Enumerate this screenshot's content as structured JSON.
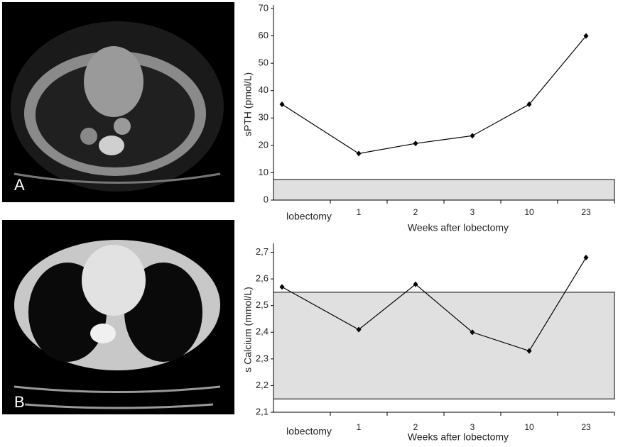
{
  "panels": [
    {
      "label": "A"
    },
    {
      "label": "B"
    }
  ],
  "chart_data": [
    {
      "type": "line",
      "ylabel": "sPTH (pmol/L)",
      "xlabel": "Weeks after lobectomy",
      "categories": [
        "lobectomy",
        "1",
        "2",
        "3",
        "10",
        "23"
      ],
      "values": [
        35,
        17,
        20.7,
        23.5,
        35,
        60
      ],
      "color": "#000000",
      "ylim": [
        0,
        70
      ],
      "yticks": [
        0,
        10,
        20,
        30,
        40,
        50,
        60,
        70
      ],
      "reference_range": [
        0,
        7.5
      ],
      "reference_color": "#e0e0e0",
      "grid": false
    },
    {
      "type": "line",
      "ylabel": "s Calcium (mmol/L)",
      "xlabel": "Weeks after lobectomy",
      "categories": [
        "lobectomy",
        "1",
        "2",
        "3",
        "10",
        "23"
      ],
      "values": [
        2.57,
        2.41,
        2.58,
        2.4,
        2.33,
        2.68
      ],
      "color": "#000000",
      "ylim": [
        2.1,
        2.72
      ],
      "yticks": [
        {
          "value": 2.1,
          "label": "2,1"
        },
        {
          "value": 2.2,
          "label": "2,2"
        },
        {
          "value": 2.3,
          "label": "2,3"
        },
        {
          "value": 2.4,
          "label": "2,4"
        },
        {
          "value": 2.5,
          "label": "2,5"
        },
        {
          "value": 2.6,
          "label": "2,6"
        },
        {
          "value": 2.7,
          "label": "2,7"
        }
      ],
      "reference_range": [
        2.15,
        2.55
      ],
      "reference_color": "#e0e0e0",
      "grid": false
    }
  ]
}
